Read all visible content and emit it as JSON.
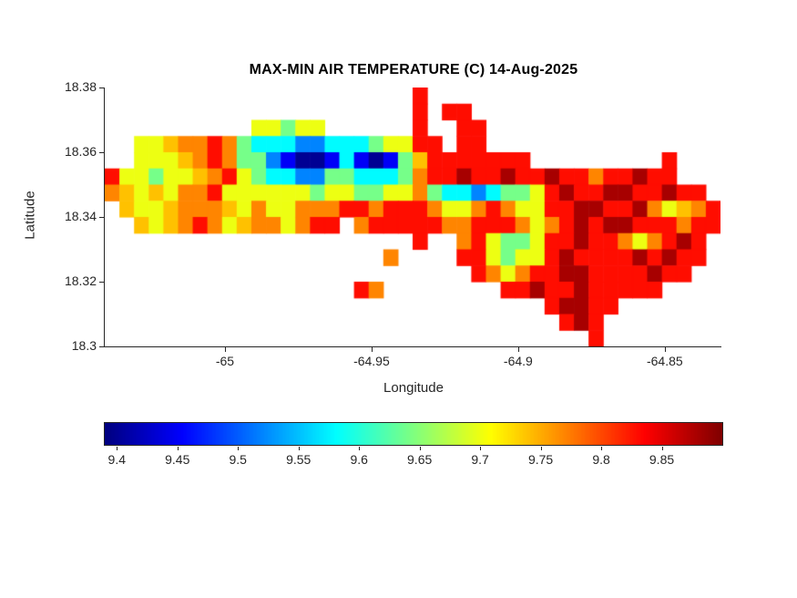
{
  "figure": {
    "background": "#ffffff",
    "text_color": "#262626",
    "title_color": "#000000"
  },
  "chart_data": {
    "type": "heatmap",
    "title": "MAX-MIN AIR TEMPERATURE (C) 14-Aug-2025",
    "xlabel": "Longitude",
    "ylabel": "Latitude",
    "colormap": "jet",
    "grid_on": false,
    "xlim": [
      -65.041,
      -64.831
    ],
    "ylim": [
      18.3,
      18.38
    ],
    "xticks": {
      "values": [
        -65,
        -64.95,
        -64.9,
        -64.85
      ],
      "labels": [
        "-65",
        "-64.95",
        "-64.9",
        "-64.85"
      ]
    },
    "yticks": {
      "values": [
        18.3,
        18.32,
        18.34,
        18.36,
        18.38
      ],
      "labels": [
        "18.3",
        "18.32",
        "18.34",
        "18.36",
        "18.38"
      ]
    },
    "colorbar": {
      "orientation": "horizontal",
      "position": "below",
      "vmin": 9.39,
      "vmax": 9.9,
      "tick_values": [
        9.4,
        9.45,
        9.5,
        9.55,
        9.6,
        9.65,
        9.7,
        9.75,
        9.8,
        9.85
      ],
      "tick_labels": [
        "9.4",
        "9.45",
        "9.5",
        "9.55",
        "9.6",
        "9.65",
        "9.7",
        "9.75",
        "9.8",
        "9.85"
      ]
    },
    "grid": {
      "note": "Approximate max-min temperature field (C) read from the map on 0.005-degree cells; rows run north (lat 18.38) to south (lat 18.30), cols west (lon -65.041) to east (lon -64.831); '.' = ocean / no data.",
      "cell_deg": 0.005,
      "value_legend": {
        "a": 9.4,
        "b": 9.45,
        "c": 9.52,
        "d": 9.58,
        "e": 9.64,
        "f": 9.7,
        "g": 9.74,
        "h": 9.77,
        "i": 9.83,
        "j": 9.88
      },
      "rows": [
        ".....................i....................",
        ".....................i.ii.................",
        "..........ffeff......i..ii................",
        "..ffghhihedddccdddeffii.ii................",
        "..fffghiheecbaabdbabegiiiiiii.........i...",
        "iffeffghifeddcceedddehiijiijiijiihiijii...",
        "hgfgfhhiffffffeffeeffheddcdeefijiijjiijii.",
        ".gffghhhgfhffhhhiihiiihffhihffiijjiijhfghi",
        "..gfghihfghhfhii.hiiiiihhiiihfhijijjiiihii",
        ".....................i..hifeefiijiihfhiji.",
        "...................h....iifeffijiiiijijii.",
        ".........................ihfhiijjiiiijii..",
        ".................ih........iijiijiiiii....",
        "..............................ijjii.......",
        "...............................iji........",
        ".................................i........"
      ]
    }
  }
}
